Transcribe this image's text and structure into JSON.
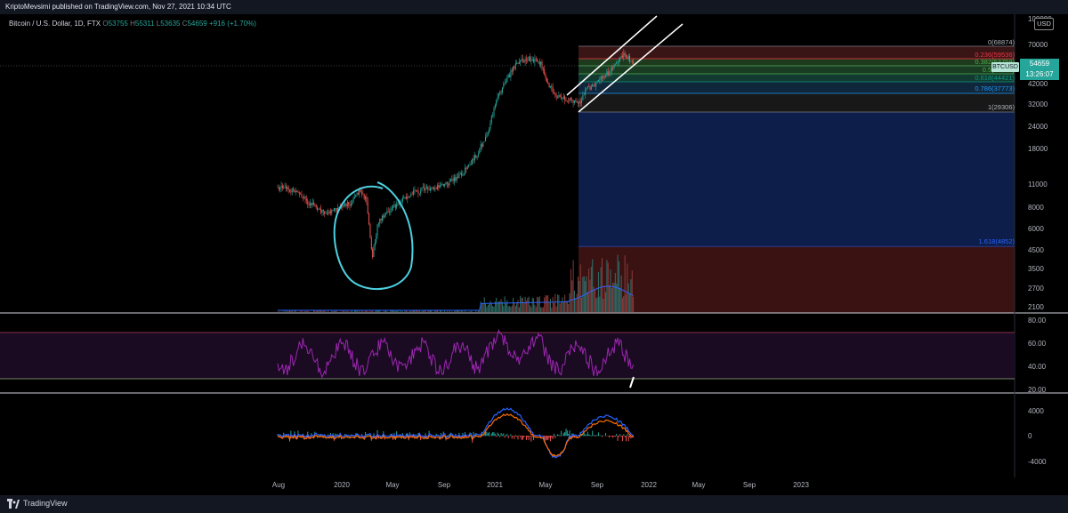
{
  "header": {
    "publish_info": "KriptoMevsimi published on TradingView.com, Nov 27, 2021 10:34 UTC"
  },
  "legend": {
    "symbol": "Bitcoin / U.S. Dollar, 1D, FTX",
    "open_label": "O",
    "open": "53755",
    "high_label": "H",
    "high": "55311",
    "low_label": "L",
    "low": "53635",
    "close_label": "C",
    "close": "54659",
    "change": "+916 (+1.70%)"
  },
  "price_axis": {
    "currency_button": "USD",
    "ticks": [
      "100000",
      "70000",
      "50000",
      "42000",
      "32000",
      "24000",
      "18000",
      "11000",
      "8000",
      "6000",
      "4500",
      "3500",
      "2700",
      "2100"
    ],
    "current_price": "54659",
    "countdown": "13:26:07",
    "symbol_tag": "BTCUSD"
  },
  "fibonacci": {
    "levels": [
      {
        "label": "0(68874)",
        "color": "#b2b5be"
      },
      {
        "label": "0.236(59536)",
        "color": "#f23645"
      },
      {
        "label": "0.382(53759)",
        "color": "#4caf50"
      },
      {
        "label": "0.5(49090)",
        "color": "#4caf50"
      },
      {
        "label": "0.618(44421)",
        "color": "#089981"
      },
      {
        "label": "0.786(37773)",
        "color": "#2196f3"
      },
      {
        "label": "1(29306)",
        "color": "#b2b5be"
      },
      {
        "label": "1.618(4852)",
        "color": "#2962ff"
      }
    ]
  },
  "rsi_axis": {
    "ticks": [
      "80.00",
      "60.00",
      "40.00",
      "20.00"
    ]
  },
  "macd_axis": {
    "ticks": [
      "4000",
      "0",
      "-4000"
    ]
  },
  "time_axis": {
    "ticks": [
      "Aug",
      "2020",
      "May",
      "Sep",
      "2021",
      "May",
      "Sep",
      "2022",
      "May",
      "Sep",
      "2023"
    ]
  },
  "colors": {
    "up": "#26a69a",
    "down": "#ef5350",
    "rsi": "#9c27b0",
    "annotation": "#4dd0e1",
    "channel": "#ffffff"
  },
  "footer": {
    "brand": "TradingView"
  }
}
